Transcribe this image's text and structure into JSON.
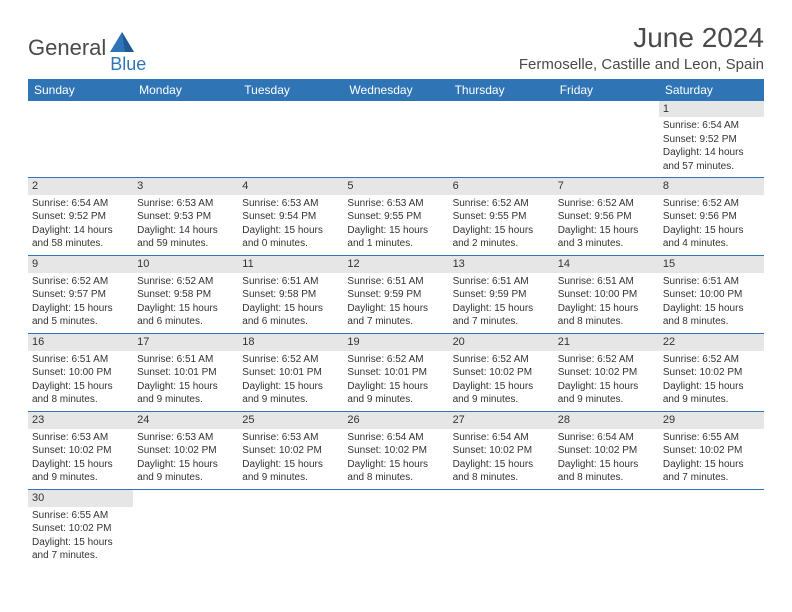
{
  "brand": {
    "text1": "General",
    "text2": "Blue"
  },
  "title": "June 2024",
  "location": "Fermoselle, Castille and Leon, Spain",
  "colors": {
    "header_bg": "#2f75b5",
    "header_fg": "#ffffff",
    "daynum_bg": "#e6e6e6",
    "rule": "#2f75b5",
    "text": "#333333"
  },
  "weekdays": [
    "Sunday",
    "Monday",
    "Tuesday",
    "Wednesday",
    "Thursday",
    "Friday",
    "Saturday"
  ],
  "weeks": [
    [
      null,
      null,
      null,
      null,
      null,
      null,
      {
        "n": "1",
        "sunrise": "6:54 AM",
        "sunset": "9:52 PM",
        "d_h": 14,
        "d_m": 57
      }
    ],
    [
      {
        "n": "2",
        "sunrise": "6:54 AM",
        "sunset": "9:52 PM",
        "d_h": 14,
        "d_m": 58
      },
      {
        "n": "3",
        "sunrise": "6:53 AM",
        "sunset": "9:53 PM",
        "d_h": 14,
        "d_m": 59
      },
      {
        "n": "4",
        "sunrise": "6:53 AM",
        "sunset": "9:54 PM",
        "d_h": 15,
        "d_m": 0
      },
      {
        "n": "5",
        "sunrise": "6:53 AM",
        "sunset": "9:55 PM",
        "d_h": 15,
        "d_m": 1
      },
      {
        "n": "6",
        "sunrise": "6:52 AM",
        "sunset": "9:55 PM",
        "d_h": 15,
        "d_m": 2
      },
      {
        "n": "7",
        "sunrise": "6:52 AM",
        "sunset": "9:56 PM",
        "d_h": 15,
        "d_m": 3
      },
      {
        "n": "8",
        "sunrise": "6:52 AM",
        "sunset": "9:56 PM",
        "d_h": 15,
        "d_m": 4
      }
    ],
    [
      {
        "n": "9",
        "sunrise": "6:52 AM",
        "sunset": "9:57 PM",
        "d_h": 15,
        "d_m": 5
      },
      {
        "n": "10",
        "sunrise": "6:52 AM",
        "sunset": "9:58 PM",
        "d_h": 15,
        "d_m": 6
      },
      {
        "n": "11",
        "sunrise": "6:51 AM",
        "sunset": "9:58 PM",
        "d_h": 15,
        "d_m": 6
      },
      {
        "n": "12",
        "sunrise": "6:51 AM",
        "sunset": "9:59 PM",
        "d_h": 15,
        "d_m": 7
      },
      {
        "n": "13",
        "sunrise": "6:51 AM",
        "sunset": "9:59 PM",
        "d_h": 15,
        "d_m": 7
      },
      {
        "n": "14",
        "sunrise": "6:51 AM",
        "sunset": "10:00 PM",
        "d_h": 15,
        "d_m": 8
      },
      {
        "n": "15",
        "sunrise": "6:51 AM",
        "sunset": "10:00 PM",
        "d_h": 15,
        "d_m": 8
      }
    ],
    [
      {
        "n": "16",
        "sunrise": "6:51 AM",
        "sunset": "10:00 PM",
        "d_h": 15,
        "d_m": 8
      },
      {
        "n": "17",
        "sunrise": "6:51 AM",
        "sunset": "10:01 PM",
        "d_h": 15,
        "d_m": 9
      },
      {
        "n": "18",
        "sunrise": "6:52 AM",
        "sunset": "10:01 PM",
        "d_h": 15,
        "d_m": 9
      },
      {
        "n": "19",
        "sunrise": "6:52 AM",
        "sunset": "10:01 PM",
        "d_h": 15,
        "d_m": 9
      },
      {
        "n": "20",
        "sunrise": "6:52 AM",
        "sunset": "10:02 PM",
        "d_h": 15,
        "d_m": 9
      },
      {
        "n": "21",
        "sunrise": "6:52 AM",
        "sunset": "10:02 PM",
        "d_h": 15,
        "d_m": 9
      },
      {
        "n": "22",
        "sunrise": "6:52 AM",
        "sunset": "10:02 PM",
        "d_h": 15,
        "d_m": 9
      }
    ],
    [
      {
        "n": "23",
        "sunrise": "6:53 AM",
        "sunset": "10:02 PM",
        "d_h": 15,
        "d_m": 9
      },
      {
        "n": "24",
        "sunrise": "6:53 AM",
        "sunset": "10:02 PM",
        "d_h": 15,
        "d_m": 9
      },
      {
        "n": "25",
        "sunrise": "6:53 AM",
        "sunset": "10:02 PM",
        "d_h": 15,
        "d_m": 9
      },
      {
        "n": "26",
        "sunrise": "6:54 AM",
        "sunset": "10:02 PM",
        "d_h": 15,
        "d_m": 8
      },
      {
        "n": "27",
        "sunrise": "6:54 AM",
        "sunset": "10:02 PM",
        "d_h": 15,
        "d_m": 8
      },
      {
        "n": "28",
        "sunrise": "6:54 AM",
        "sunset": "10:02 PM",
        "d_h": 15,
        "d_m": 8
      },
      {
        "n": "29",
        "sunrise": "6:55 AM",
        "sunset": "10:02 PM",
        "d_h": 15,
        "d_m": 7
      }
    ],
    [
      {
        "n": "30",
        "sunrise": "6:55 AM",
        "sunset": "10:02 PM",
        "d_h": 15,
        "d_m": 7
      },
      null,
      null,
      null,
      null,
      null,
      null
    ]
  ],
  "labels": {
    "sunrise": "Sunrise:",
    "sunset": "Sunset:",
    "daylight": "Daylight:",
    "hours": "hours",
    "and": "and",
    "minutes": "minutes."
  }
}
